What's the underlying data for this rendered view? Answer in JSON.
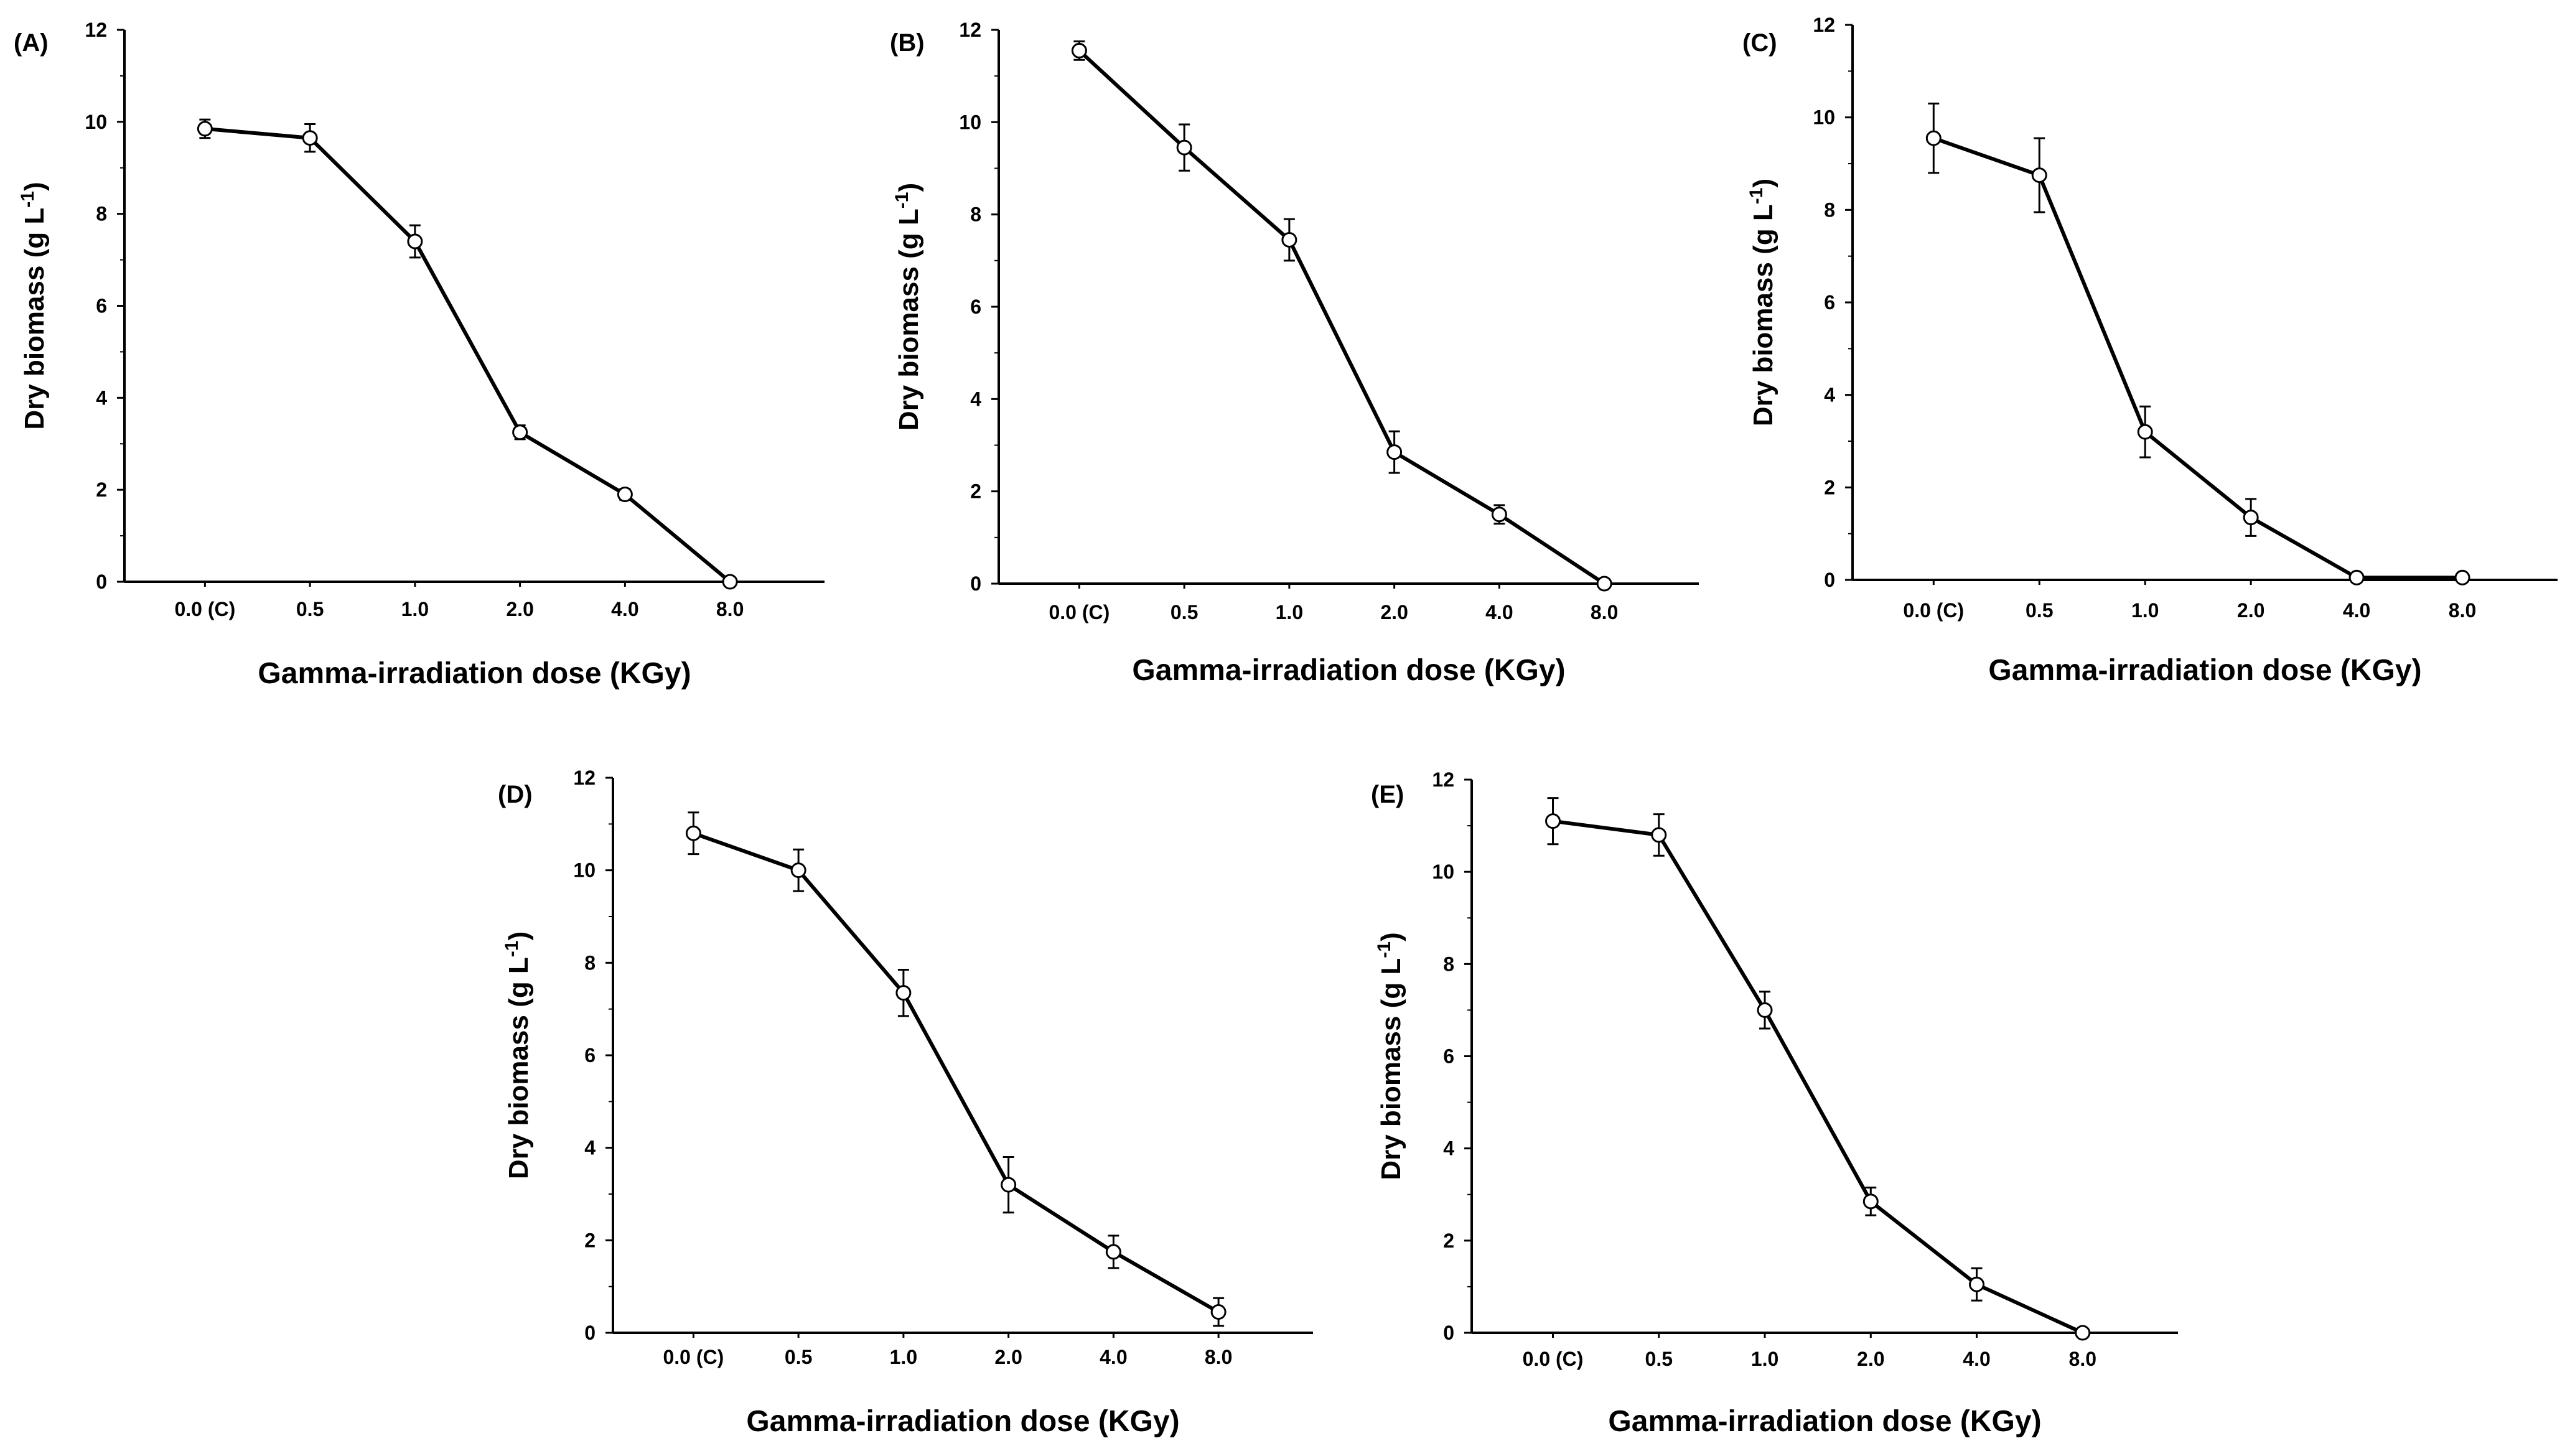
{
  "chart_data": [
    {
      "type": "line",
      "panel_label": "(A)",
      "categories": [
        "0.0 (C)",
        "0.5",
        "1.0",
        "2.0",
        "4.0",
        "8.0"
      ],
      "values": [
        9.85,
        9.65,
        7.4,
        3.25,
        1.9,
        0.0
      ],
      "errors": [
        0.2,
        0.3,
        0.35,
        0.15,
        0.12,
        0.0
      ],
      "ylim": [
        0,
        12
      ],
      "yticks": [
        0,
        2,
        4,
        6,
        8,
        10,
        12
      ],
      "xlabel": "Gamma-irradiation dose (KGy)",
      "ylabel": {
        "text": "Dry biomass (g L",
        "sup": "-1",
        "close": ")"
      },
      "grid": false
    },
    {
      "type": "line",
      "panel_label": "(B)",
      "categories": [
        "0.0 (C)",
        "0.5",
        "1.0",
        "2.0",
        "4.0",
        "8.0"
      ],
      "values": [
        11.55,
        9.45,
        7.45,
        2.85,
        1.5,
        0.0
      ],
      "errors": [
        0.2,
        0.5,
        0.45,
        0.45,
        0.2,
        0.0
      ],
      "ylim": [
        0,
        12
      ],
      "yticks": [
        0,
        2,
        4,
        6,
        8,
        10,
        12
      ],
      "xlabel": "Gamma-irradiation dose (KGy)",
      "ylabel": {
        "text": "Dry biomass (g L",
        "sup": "-1",
        "close": ")"
      },
      "grid": false
    },
    {
      "type": "line",
      "panel_label": "(C)",
      "categories": [
        "0.0 (C)",
        "0.5",
        "1.0",
        "2.0",
        "4.0",
        "8.0"
      ],
      "values": [
        9.55,
        8.75,
        3.2,
        1.35,
        0.05,
        0.05
      ],
      "errors": [
        0.75,
        0.8,
        0.55,
        0.4,
        0.0,
        0.0
      ],
      "ylim": [
        0,
        12
      ],
      "yticks": [
        0,
        2,
        4,
        6,
        8,
        10,
        12
      ],
      "xlabel": "Gamma-irradiation dose (KGy)",
      "ylabel": {
        "text": "Dry biomass (g L",
        "sup": "-1",
        "close": ")"
      },
      "grid": false
    },
    {
      "type": "line",
      "panel_label": "(D)",
      "categories": [
        "0.0 (C)",
        "0.5",
        "1.0",
        "2.0",
        "4.0",
        "8.0"
      ],
      "values": [
        10.8,
        10.0,
        7.35,
        3.2,
        1.75,
        0.45
      ],
      "errors": [
        0.45,
        0.45,
        0.5,
        0.6,
        0.35,
        0.3
      ],
      "ylim": [
        0,
        12
      ],
      "yticks": [
        0,
        2,
        4,
        6,
        8,
        10,
        12
      ],
      "xlabel": "Gamma-irradiation dose (KGy)",
      "ylabel": {
        "text": "Dry biomass (g L",
        "sup": "-1",
        "close": ")"
      },
      "grid": false
    },
    {
      "type": "line",
      "panel_label": "(E)",
      "categories": [
        "0.0 (C)",
        "0.5",
        "1.0",
        "2.0",
        "4.0",
        "8.0"
      ],
      "values": [
        11.1,
        10.8,
        7.0,
        2.85,
        1.05,
        0.0
      ],
      "errors": [
        0.5,
        0.45,
        0.4,
        0.3,
        0.35,
        0.0
      ],
      "ylim": [
        0,
        12
      ],
      "yticks": [
        0,
        2,
        4,
        6,
        8,
        10,
        12
      ],
      "xlabel": "Gamma-irradiation dose (KGy)",
      "ylabel": {
        "text": "Dry biomass (g L",
        "sup": "-1",
        "close": ")"
      },
      "grid": false
    }
  ]
}
